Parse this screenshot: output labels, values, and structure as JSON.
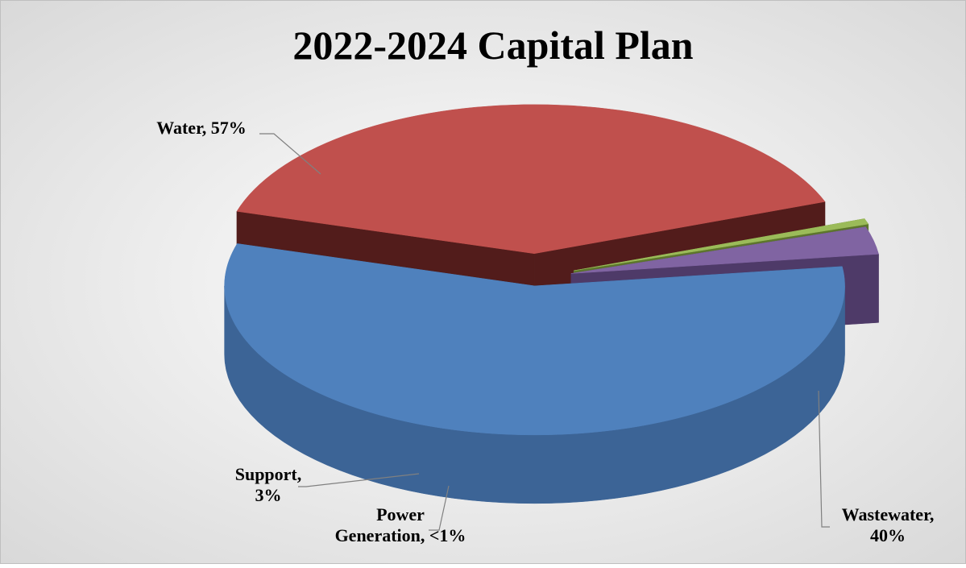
{
  "chart_data": {
    "type": "pie",
    "title": "2022-2024 Capital Plan",
    "subtitle": "",
    "legend": "none",
    "slices": [
      {
        "category": "Water",
        "value": 57,
        "display": "57%",
        "label_lines": [
          "Water, 57%"
        ],
        "color": "#4f81bd",
        "side_color": "#3c6496",
        "dark_color": "#2e4f7a"
      },
      {
        "category": "Wastewater",
        "value": 40,
        "display": "40%",
        "label_lines": [
          "Wastewater,",
          "40%"
        ],
        "color": "#c0504d",
        "side_color": "#8f2f2c",
        "dark_color": "#521c1b"
      },
      {
        "category": "Power Generation",
        "value": 0.6,
        "display": "<1%",
        "label_lines": [
          "Power",
          "Generation, <1%"
        ],
        "color": "#9bbb59",
        "side_color": "#7c9a3d",
        "dark_color": "#5d762c"
      },
      {
        "category": "Support",
        "value": 3,
        "display": "3%",
        "label_lines": [
          "Support,",
          "3%"
        ],
        "color": "#8064a2",
        "side_color": "#684f88",
        "dark_color": "#4e3a68"
      }
    ]
  }
}
